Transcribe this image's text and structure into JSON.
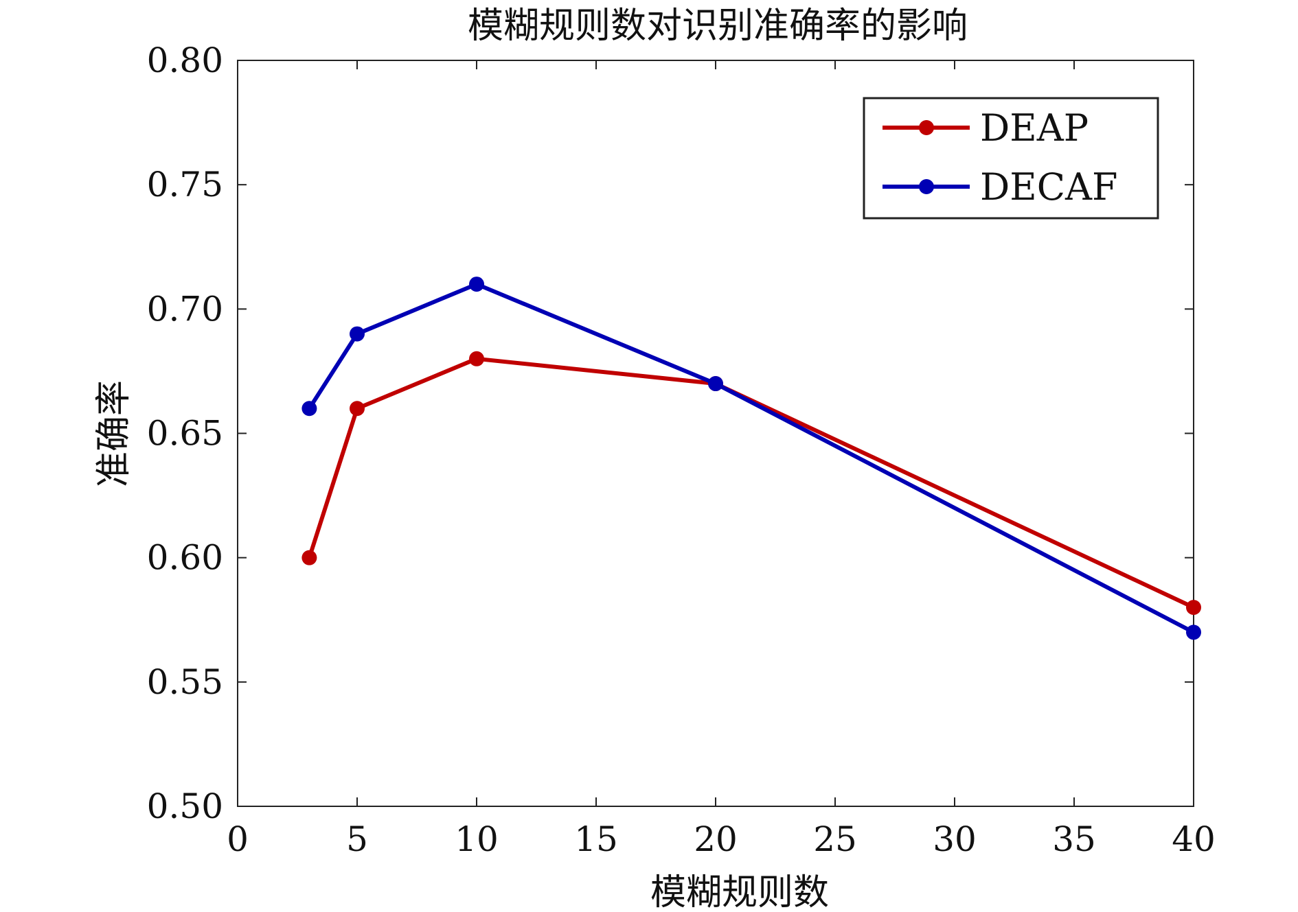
{
  "chart_data": {
    "type": "line",
    "title": "模糊规则数对识别准确率的影响",
    "xlabel": "模糊规则数",
    "ylabel": "准确率",
    "x": [
      3,
      5,
      10,
      20,
      40
    ],
    "series": [
      {
        "name": "DEAP",
        "color": "#c00000",
        "values": [
          0.6,
          0.66,
          0.68,
          0.67,
          0.58
        ]
      },
      {
        "name": "DECAF",
        "color": "#0000b4",
        "values": [
          0.66,
          0.69,
          0.71,
          0.67,
          0.57
        ]
      }
    ],
    "xlim": [
      0,
      40
    ],
    "ylim": [
      0.5,
      0.8
    ],
    "xticks": [
      0,
      5,
      10,
      15,
      20,
      25,
      30,
      35,
      40
    ],
    "xtick_labels": [
      "0",
      "5",
      "10",
      "15",
      "20",
      "25",
      "30",
      "35",
      "40"
    ],
    "yticks": [
      0.5,
      0.55,
      0.6,
      0.65,
      0.7,
      0.75,
      0.8
    ],
    "ytick_labels": [
      "0.50",
      "0.55",
      "0.60",
      "0.65",
      "0.70",
      "0.75",
      "0.80"
    ],
    "grid": false,
    "legend_position": "top-right"
  }
}
